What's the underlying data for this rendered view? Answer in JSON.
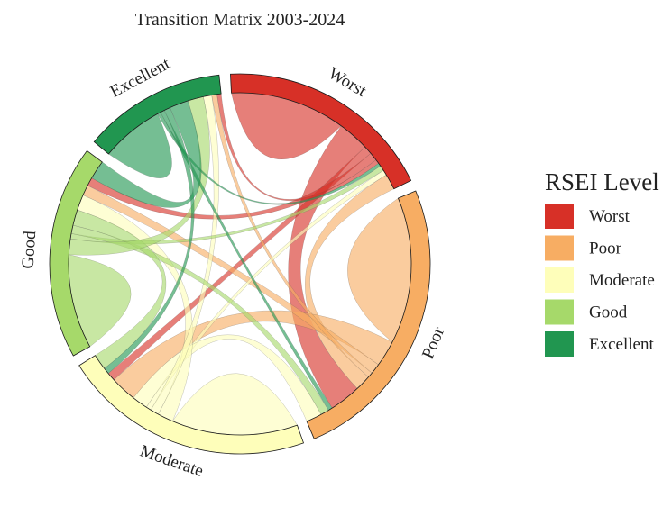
{
  "chart_data": {
    "type": "chord",
    "title": "Transition Matrix 2003-2024",
    "categories": [
      "Worst",
      "Poor",
      "Moderate",
      "Good",
      "Excellent"
    ],
    "colors": {
      "Worst": "#d73027",
      "Poor": "#f7ad63",
      "Moderate": "#fefeba",
      "Good": "#a6d96a",
      "Excellent": "#219650"
    },
    "legend": {
      "title": "RSEI Level",
      "items": [
        "Worst",
        "Poor",
        "Moderate",
        "Good",
        "Excellent"
      ],
      "placement": "right"
    },
    "flows": [
      {
        "from": "Worst",
        "to": "Worst",
        "value": 11
      },
      {
        "from": "Worst",
        "to": "Poor",
        "value": 3
      },
      {
        "from": "Worst",
        "to": "Moderate",
        "value": 0.8
      },
      {
        "from": "Worst",
        "to": "Good",
        "value": 0.8
      },
      {
        "from": "Worst",
        "to": "Excellent",
        "value": 0.4
      },
      {
        "from": "Poor",
        "to": "Worst",
        "value": 1.5
      },
      {
        "from": "Poor",
        "to": "Poor",
        "value": 14
      },
      {
        "from": "Poor",
        "to": "Moderate",
        "value": 2.5
      },
      {
        "from": "Poor",
        "to": "Good",
        "value": 1
      },
      {
        "from": "Poor",
        "to": "Excellent",
        "value": 0.5
      },
      {
        "from": "Moderate",
        "to": "Worst",
        "value": 0.5
      },
      {
        "from": "Moderate",
        "to": "Poor",
        "value": 1.5
      },
      {
        "from": "Moderate",
        "to": "Moderate",
        "value": 12
      },
      {
        "from": "Moderate",
        "to": "Good",
        "value": 1.5
      },
      {
        "from": "Moderate",
        "to": "Excellent",
        "value": 0.8
      },
      {
        "from": "Good",
        "to": "Worst",
        "value": 0.5
      },
      {
        "from": "Good",
        "to": "Poor",
        "value": 0.8
      },
      {
        "from": "Good",
        "to": "Moderate",
        "value": 1.5
      },
      {
        "from": "Good",
        "to": "Good",
        "value": 9
      },
      {
        "from": "Good",
        "to": "Excellent",
        "value": 1.5
      },
      {
        "from": "Excellent",
        "to": "Worst",
        "value": 0.3
      },
      {
        "from": "Excellent",
        "to": "Poor",
        "value": 0.4
      },
      {
        "from": "Excellent",
        "to": "Moderate",
        "value": 0.6
      },
      {
        "from": "Excellent",
        "to": "Good",
        "value": 1.8
      },
      {
        "from": "Excellent",
        "to": "Excellent",
        "value": 6
      }
    ]
  }
}
